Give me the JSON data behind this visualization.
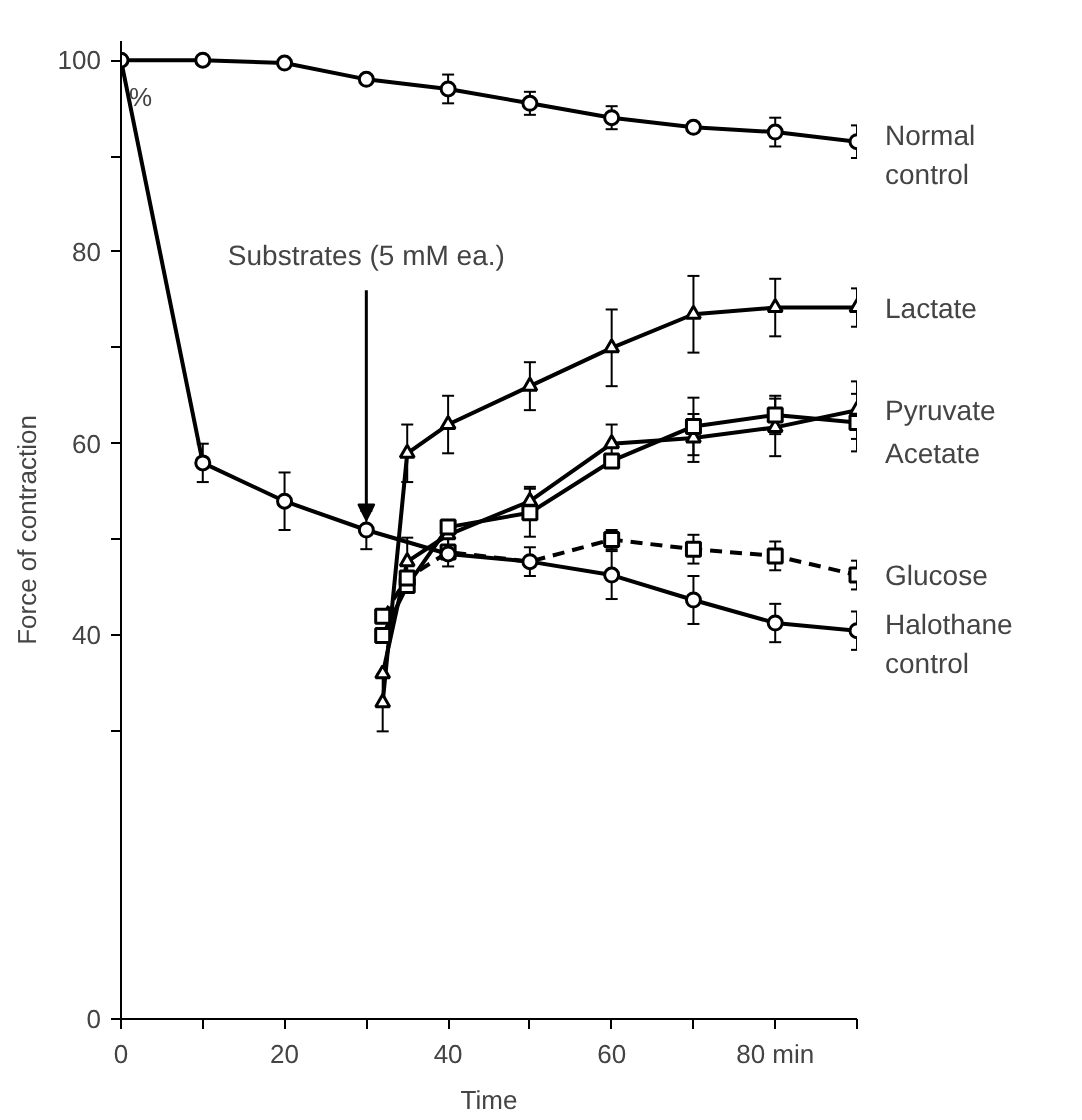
{
  "chart_data": {
    "type": "line",
    "xlabel": "Time",
    "ylabel": "Force of contraction",
    "grid": false,
    "xlim": [
      0,
      90
    ],
    "ylim": [
      0,
      102
    ],
    "xticks": [
      0,
      {
        "value": 10,
        "label": null
      },
      20,
      {
        "value": 30,
        "label": null
      },
      40,
      {
        "value": 50,
        "label": null
      },
      60,
      {
        "value": 70,
        "label": null
      },
      {
        "value": 80,
        "label": "80 min"
      },
      {
        "value": 90,
        "label": null
      }
    ],
    "yticks": [
      0,
      {
        "value": 30,
        "label": null
      },
      40,
      {
        "value": 50,
        "label": null
      },
      60,
      {
        "value": 70,
        "label": null
      },
      80,
      {
        "value": 90,
        "label": null
      },
      100
    ],
    "annotations": [
      "%",
      {
        "text": "Substrates (5 mM ea.)",
        "x": 30,
        "y": 52
      }
    ],
    "series": [
      {
        "name": "Normal control",
        "color": "#000000",
        "marker": "circle",
        "line_style": "solid",
        "x": [
          0,
          10,
          20,
          30,
          40,
          50,
          60,
          70,
          80,
          90
        ],
        "values": [
          100,
          100,
          99.7,
          98,
          97,
          95.5,
          94,
          93,
          92.5,
          91.5
        ],
        "errors": [
          null,
          null,
          null,
          null,
          1.5,
          1.2,
          1.2,
          0.5,
          1.5,
          1.7
        ]
      },
      {
        "name": "Lactate",
        "color": "#000000",
        "marker": "triangle",
        "line_style": "solid",
        "x": [
          32,
          35,
          40,
          50,
          60,
          70,
          80,
          90
        ],
        "values": [
          33,
          59,
          62,
          66,
          70,
          73.5,
          74.2,
          74.2
        ],
        "errors": [
          3,
          3,
          3,
          2.5,
          4,
          4,
          3,
          2
        ]
      },
      {
        "name": "Pyruvate",
        "color": "#000000",
        "marker": "triangle",
        "line_style": "solid",
        "x": [
          32,
          35,
          40,
          50,
          60,
          70,
          80,
          90
        ],
        "values": [
          36,
          47.7,
          50.5,
          54,
          60,
          60.6,
          61.7,
          63.5
        ],
        "errors": [
          null,
          2.5,
          1.5,
          1.5,
          2,
          2.5,
          3,
          3
        ]
      },
      {
        "name": "Acetate",
        "color": "#000000",
        "marker": "square",
        "line_style": "solid",
        "x": [
          32,
          35,
          40,
          50,
          60,
          70,
          80,
          90
        ],
        "values": [
          40,
          45.2,
          51.3,
          52.8,
          58.2,
          61.8,
          63,
          62.2
        ],
        "errors": [
          null,
          null,
          null,
          2.5,
          null,
          3,
          2,
          3
        ]
      },
      {
        "name": "Glucose",
        "color": "#000000",
        "marker": "square",
        "line_style": "dashed",
        "x": [
          32,
          35,
          40,
          50,
          60,
          70,
          80,
          90
        ],
        "values": [
          42,
          46,
          48.7,
          47.7,
          50,
          49,
          48.3,
          46.3
        ],
        "errors": [
          null,
          null,
          1.5,
          1.5,
          1,
          1.5,
          1.5,
          1.5
        ]
      },
      {
        "name": "Halothane control",
        "color": "#000000",
        "marker": "circle",
        "line_style": "solid",
        "x": [
          0,
          10,
          20,
          30,
          40,
          50,
          60,
          70,
          80,
          90
        ],
        "values": [
          100,
          58,
          54,
          51,
          48.5,
          47.7,
          46.3,
          43.7,
          41.3,
          40.5
        ],
        "errors": [
          null,
          2,
          3,
          2,
          null,
          null,
          2.5,
          2.5,
          2,
          2
        ]
      }
    ]
  }
}
